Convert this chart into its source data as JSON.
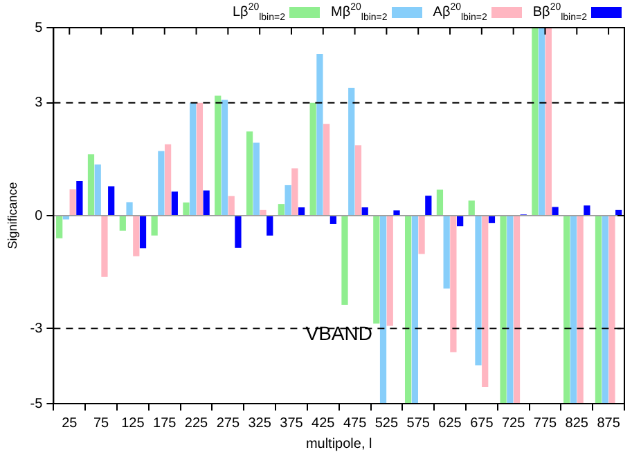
{
  "chart_data": {
    "type": "bar",
    "xlabel": "multipole, l",
    "ylabel": "Significance",
    "categories": [
      "25",
      "75",
      "125",
      "175",
      "225",
      "275",
      "325",
      "375",
      "425",
      "475",
      "525",
      "575",
      "625",
      "675",
      "725",
      "775",
      "825",
      "875"
    ],
    "series": [
      {
        "name": "Lβ$^{20}$$_{lbin=2}$",
        "color": "#90ee90",
        "values": [
          -0.6,
          1.63,
          -0.4,
          -0.53,
          0.35,
          3.19,
          2.24,
          0.31,
          3.0,
          -2.37,
          -2.87,
          -5,
          0.69,
          0.4,
          -5,
          5,
          -5,
          -5
        ]
      },
      {
        "name": "Mβ$^{20}$$_{lbin=2}$",
        "color": "#87cefa",
        "values": [
          -0.1,
          1.36,
          0.36,
          1.72,
          3.0,
          3.08,
          1.94,
          0.81,
          4.3,
          3.4,
          -5,
          -5,
          -1.94,
          -3.98,
          -5,
          5,
          -5,
          -5
        ]
      },
      {
        "name": "Aβ$^{20}$$_{lbin=2}$",
        "color": "#ffb6c1",
        "values": [
          0.7,
          -1.63,
          -1.08,
          1.9,
          3.0,
          0.52,
          0.15,
          1.26,
          2.44,
          1.87,
          -2.93,
          -1.02,
          -3.63,
          -4.56,
          -5,
          5,
          -5,
          -5
        ]
      },
      {
        "name": "Bβ$^{20}$$_{lbin=2}$",
        "color": "#0000ff",
        "values": [
          0.92,
          0.78,
          -0.87,
          0.64,
          0.67,
          -0.86,
          -0.53,
          0.22,
          -0.22,
          0.22,
          0.14,
          0.53,
          -0.28,
          -0.2,
          0.03,
          0.23,
          0.27,
          0.15
        ]
      }
    ],
    "ylim": [
      -5,
      5
    ],
    "yticks": [
      -5,
      -3,
      0,
      3,
      5
    ],
    "grid": false,
    "legend": "top right",
    "ref_lines": [
      {
        "axis": "y",
        "value": 3,
        "line_style": "dashed",
        "color": "#000000"
      },
      {
        "axis": "y",
        "value": -3,
        "line_style": "dashed",
        "color": "#000000"
      },
      {
        "axis": "y",
        "value": 0,
        "line_style": "solid",
        "color": "#a0a0a0"
      }
    ],
    "annotations": [
      "VBAND"
    ]
  }
}
